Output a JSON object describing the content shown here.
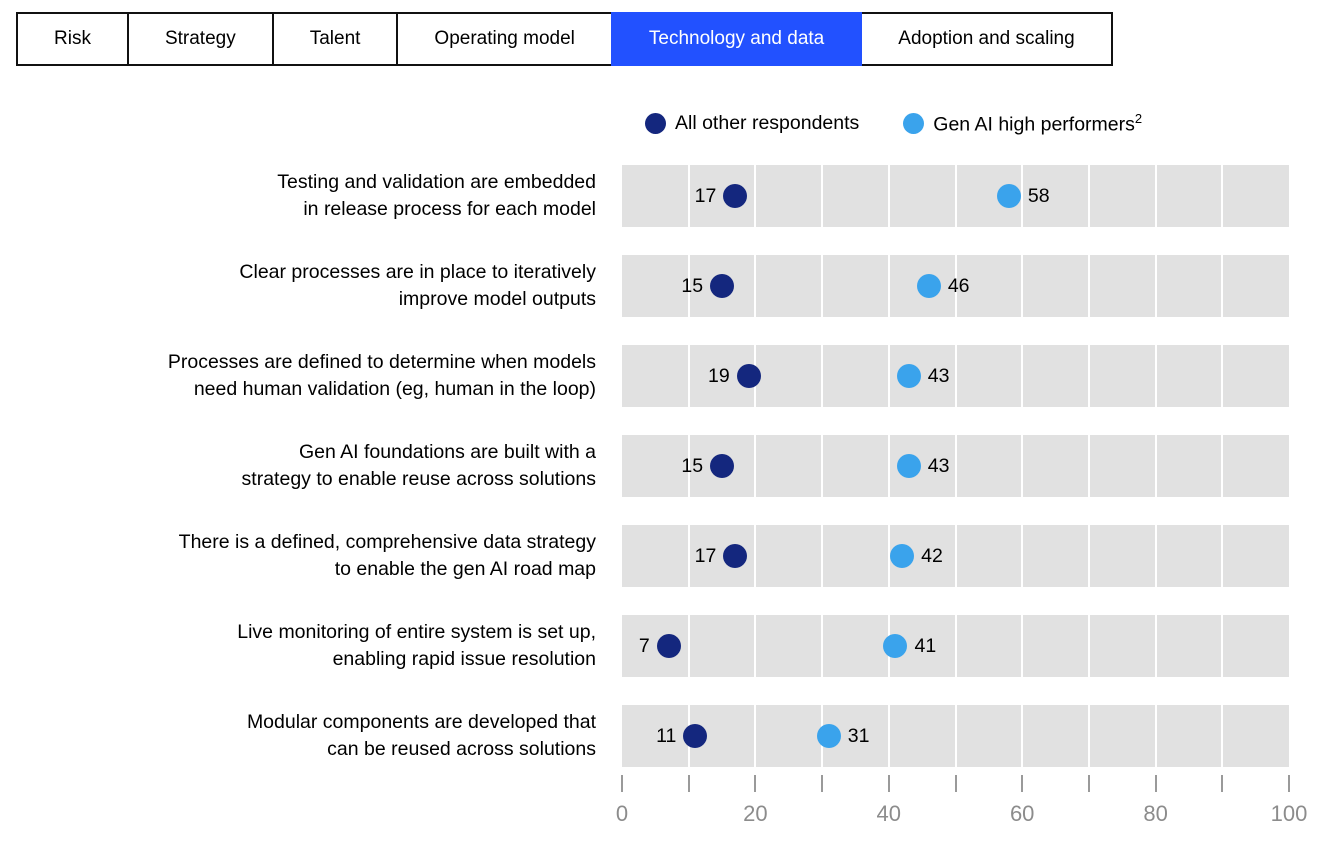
{
  "tabs": {
    "items": [
      {
        "label": "Risk",
        "active": false
      },
      {
        "label": "Strategy",
        "active": false
      },
      {
        "label": "Talent",
        "active": false
      },
      {
        "label": "Operating model",
        "active": false
      },
      {
        "label": "Technology and data",
        "active": true
      },
      {
        "label": "Adoption and scaling",
        "active": false
      }
    ],
    "active_bg": "#2251ff"
  },
  "legend": {
    "items": [
      {
        "label": "All other respondents",
        "sup": "",
        "color": "#14277e"
      },
      {
        "label": "Gen AI high performers",
        "sup": "2",
        "color": "#3aa3ec"
      }
    ]
  },
  "chart_data": {
    "type": "scatter",
    "subtype": "horizontal-dot-plot",
    "categories": [
      "Testing and validation are embedded\nin release process for each model",
      "Clear processes are in place to iteratively\nimprove model outputs",
      "Processes are defined to determine when models\nneed human validation (eg, human in the loop)",
      "Gen AI foundations are built with a\nstrategy to enable reuse across solutions",
      "There is a defined, comprehensive data strategy\nto enable the gen AI road map",
      "Live monitoring of entire system is set up,\nenabling rapid issue resolution",
      "Modular components are developed that\ncan be reused across solutions"
    ],
    "series": [
      {
        "name": "All other respondents",
        "color": "#14277e",
        "label_side": "left",
        "values": [
          17,
          15,
          19,
          15,
          17,
          7,
          11
        ]
      },
      {
        "name": "Gen AI high performers",
        "color": "#3aa3ec",
        "label_side": "right",
        "values": [
          58,
          46,
          43,
          43,
          42,
          41,
          31
        ]
      }
    ],
    "axis": {
      "min": 0,
      "max": 100,
      "tick_step": 10,
      "labeled_ticks": [
        0,
        20,
        40,
        60,
        80,
        100
      ],
      "gridlines": [
        10,
        20,
        30,
        40,
        50,
        60,
        70,
        80,
        90
      ]
    },
    "colors": {
      "band": "#e1e1e1",
      "gridline": "#ffffff",
      "tick": "#9a9a9a",
      "tick_label": "#8c8c8c"
    },
    "legend_position": "top-right-of-plot",
    "grid": "vertical-white-lines-on-gray-bands"
  }
}
